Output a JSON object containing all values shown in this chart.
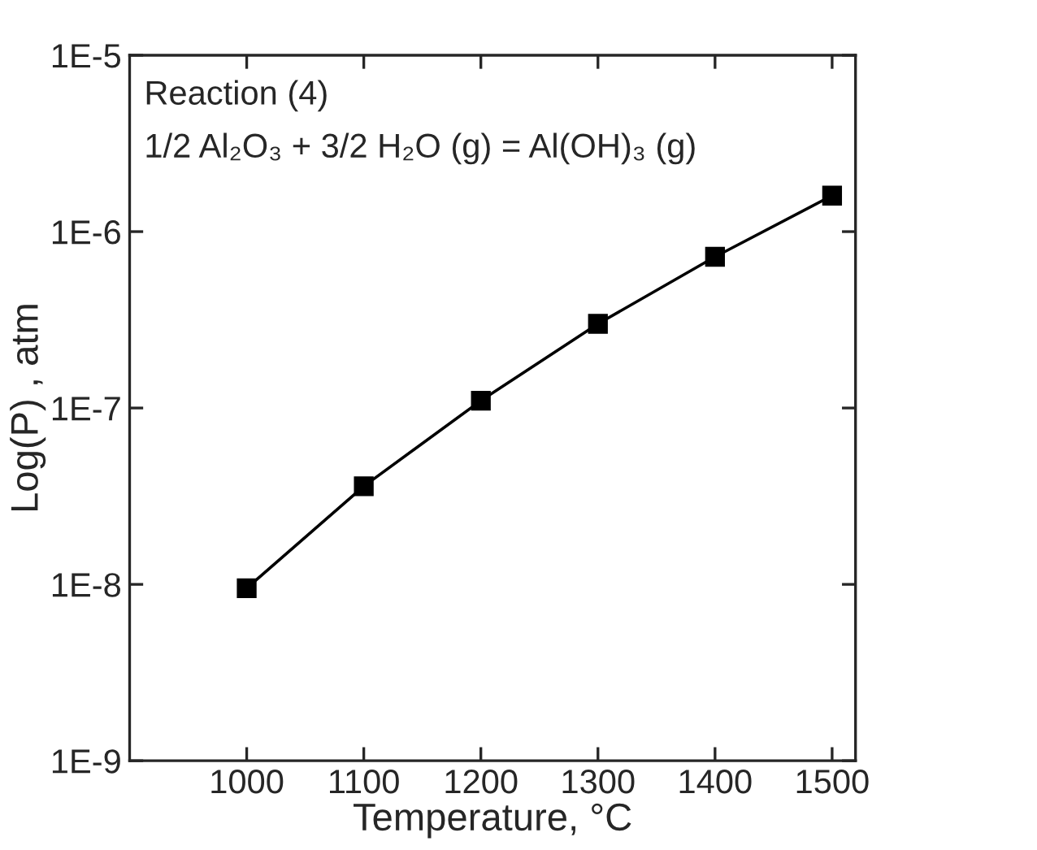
{
  "chart_data": {
    "type": "line",
    "xlabel": "Temperature, °C",
    "ylabel": "Log(P) , atm",
    "annotations": [
      "Reaction (4)",
      "1/2 Al₂O₃ + 3/2 H₂O (g) = Al(OH)₃ (g)"
    ],
    "x": [
      1000,
      1100,
      1200,
      1300,
      1400,
      1500
    ],
    "series": [
      {
        "color": "#000000",
        "values": [
          9.5e-09,
          3.6e-08,
          1.1e-07,
          3e-07,
          7.2e-07,
          1.6e-06
        ]
      }
    ],
    "log": true,
    "marker": "square",
    "line_style": "solid",
    "grid": false,
    "legend": false,
    "xlim": [
      900,
      1520
    ],
    "xticks": [
      1000,
      1100,
      1200,
      1300,
      1400,
      1500
    ],
    "ylim": [
      1e-09,
      1e-05
    ],
    "yticks": [
      {
        "value": 1e-09,
        "label": "1E-9"
      },
      {
        "value": 1e-08,
        "label": "1E-8"
      },
      {
        "value": 1e-07,
        "label": "1E-7"
      },
      {
        "value": 1e-06,
        "label": "1E-6"
      },
      {
        "value": 1e-05,
        "label": "1E-5"
      }
    ]
  }
}
